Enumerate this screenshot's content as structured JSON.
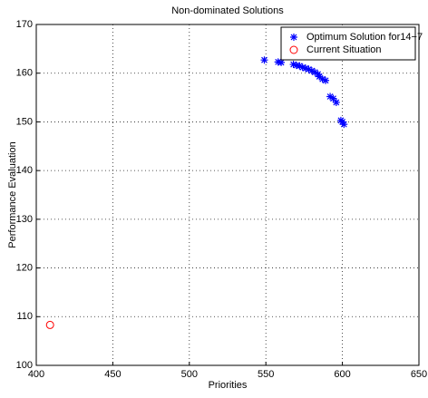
{
  "chart_data": {
    "type": "scatter",
    "title": "Non-dominated Solutions",
    "x_label": "Priorities",
    "y_label": "Performance Evaluation",
    "xlim": [
      400,
      650
    ],
    "xticks": [
      400,
      450,
      500,
      550,
      600,
      650
    ],
    "ylim": [
      100,
      170
    ],
    "yticks": [
      100,
      110,
      120,
      130,
      140,
      150,
      160,
      170
    ],
    "grid": true,
    "legend": "top-right",
    "series": [
      {
        "name": "Optimum Solution for14−7",
        "color": "#0000ff",
        "marker": "star",
        "x": [
          549,
          558,
          560,
          568,
          570,
          572,
          574,
          576,
          578,
          580,
          582,
          584,
          585,
          587,
          589,
          592,
          594,
          596,
          599,
          600,
          601
        ],
        "values": [
          162.7,
          162.3,
          162.2,
          161.8,
          161.6,
          161.5,
          161.2,
          161.0,
          160.8,
          160.5,
          160.2,
          159.8,
          159.3,
          158.8,
          158.5,
          155.2,
          154.8,
          154.0,
          150.3,
          150.0,
          149.5
        ]
      },
      {
        "name": "Current Situation",
        "color": "#ff0000",
        "marker": "circle",
        "x": [
          409
        ],
        "values": [
          108.3
        ]
      }
    ]
  }
}
